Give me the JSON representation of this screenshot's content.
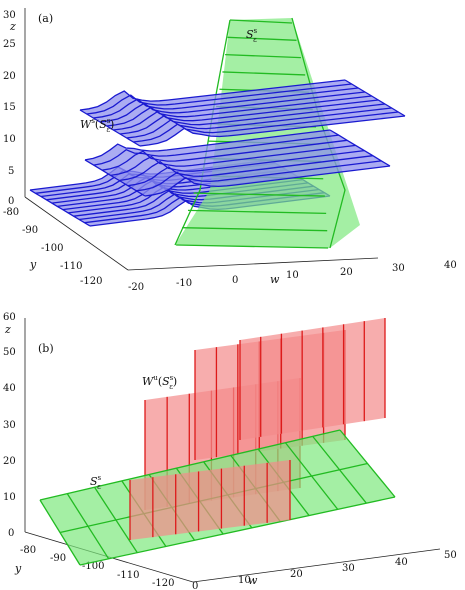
{
  "figure": {
    "panels": [
      {
        "label": "(a)",
        "z_axis_label": "z",
        "y_axis_label": "y",
        "w_axis_label": "w",
        "z_ticks": [
          "30",
          "25",
          "20",
          "15",
          "10",
          "5",
          "0"
        ],
        "y_ticks": [
          "-80",
          "-90",
          "-100",
          "-110",
          "-120"
        ],
        "w_ticks": [
          "-20",
          "-10",
          "0",
          "10",
          "20",
          "30",
          "40"
        ],
        "annotations": {
          "green_surface": "S^s_ε",
          "blue_manifold": "W^s(S^s_ε)"
        },
        "colors": {
          "green_fill": "#7de87d",
          "green_line": "#22bb22",
          "blue_fill": "#8f90ee",
          "blue_line": "#1a1ad0"
        }
      },
      {
        "label": "(b)",
        "z_axis_label": "z",
        "y_axis_label": "y",
        "w_axis_label": "w",
        "z_ticks": [
          "60",
          "50",
          "40",
          "30",
          "20",
          "10",
          "0"
        ],
        "y_ticks": [
          "-80",
          "-90",
          "-100",
          "-110",
          "-120"
        ],
        "w_ticks": [
          "0",
          "10",
          "20",
          "30",
          "40",
          "50"
        ],
        "annotations": {
          "red_manifold": "W^u(S^s_ε)",
          "green_surface": "S^s_ε"
        },
        "colors": {
          "green_fill": "#7de87d",
          "green_line": "#22bb22",
          "red_fill": "#f48a8a",
          "red_line": "#dd1a1a"
        }
      }
    ]
  }
}
